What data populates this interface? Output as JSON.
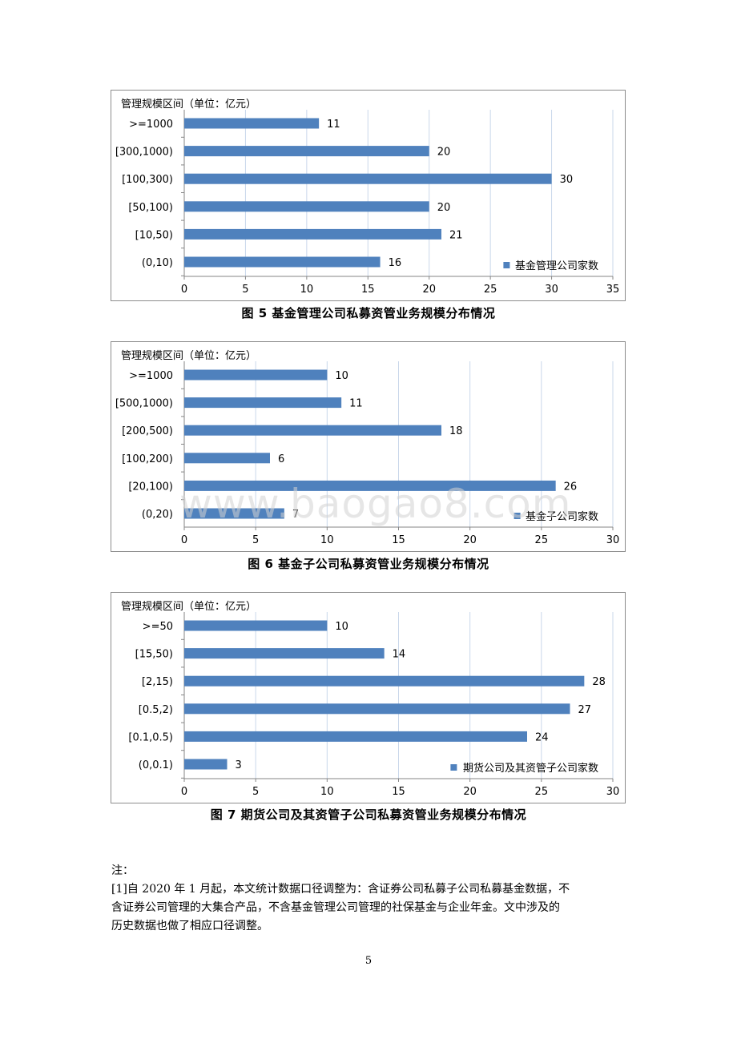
{
  "charts": [
    {
      "caption": "图 5  基金管理公司私募资管业务规模分布情况",
      "chart_data": {
        "type": "bar",
        "orientation": "horizontal",
        "title": "管理规模区间（单位：亿元）",
        "categories": [
          ">=1000",
          "[300,1000)",
          "[100,300)",
          "[50,100)",
          "[10,50)",
          "(0,10)"
        ],
        "series": [
          {
            "name": "基金管理公司家数",
            "values": [
              11,
              20,
              30,
              20,
              21,
              16
            ]
          }
        ],
        "xlim": [
          0,
          35
        ],
        "xticks": [
          0,
          5,
          10,
          15,
          20,
          25,
          30,
          35
        ],
        "grid": "vertical",
        "legend": "bottom-right",
        "color": "#4F81BD"
      }
    },
    {
      "caption": "图 6  基金子公司私募资管业务规模分布情况",
      "chart_data": {
        "type": "bar",
        "orientation": "horizontal",
        "title": "管理规模区间（单位：亿元）",
        "categories": [
          ">=1000",
          "[500,1000)",
          "[200,500)",
          "[100,200)",
          "[20,100)",
          "(0,20)"
        ],
        "series": [
          {
            "name": "基金子公司家数",
            "values": [
              10,
              11,
              18,
              6,
              26,
              7
            ]
          }
        ],
        "xlim": [
          0,
          30
        ],
        "xticks": [
          0,
          5,
          10,
          15,
          20,
          25,
          30
        ],
        "grid": "vertical",
        "legend": "bottom-right",
        "color": "#4F81BD"
      }
    },
    {
      "caption": "图 7  期货公司及其资管子公司私募资管业务规模分布情况",
      "chart_data": {
        "type": "bar",
        "orientation": "horizontal",
        "title": "管理规模区间（单位：亿元）",
        "categories": [
          ">=50",
          "[15,50)",
          "[2,15)",
          "[0.5,2)",
          "[0.1,0.5)",
          "(0,0.1)"
        ],
        "series": [
          {
            "name": "期货公司及其资管子公司家数",
            "values": [
              10,
              14,
              28,
              27,
              24,
              3
            ]
          }
        ],
        "xlim": [
          0,
          30
        ],
        "xticks": [
          0,
          5,
          10,
          15,
          20,
          25,
          30
        ],
        "grid": "vertical",
        "legend": "bottom-right",
        "color": "#4F81BD"
      }
    }
  ],
  "watermark": "www.baogao8.com",
  "notes": {
    "heading": "注：",
    "line1": "[1]自 2020 年 1 月起，本文统计数据口径调整为：含证券公司私募子公司私募基金数据，不",
    "line2": "含证券公司管理的大集合产品，不含基金管理公司管理的社保基金与企业年金。文中涉及的",
    "line3": "历史数据也做了相应口径调整。"
  },
  "page_number": "5"
}
